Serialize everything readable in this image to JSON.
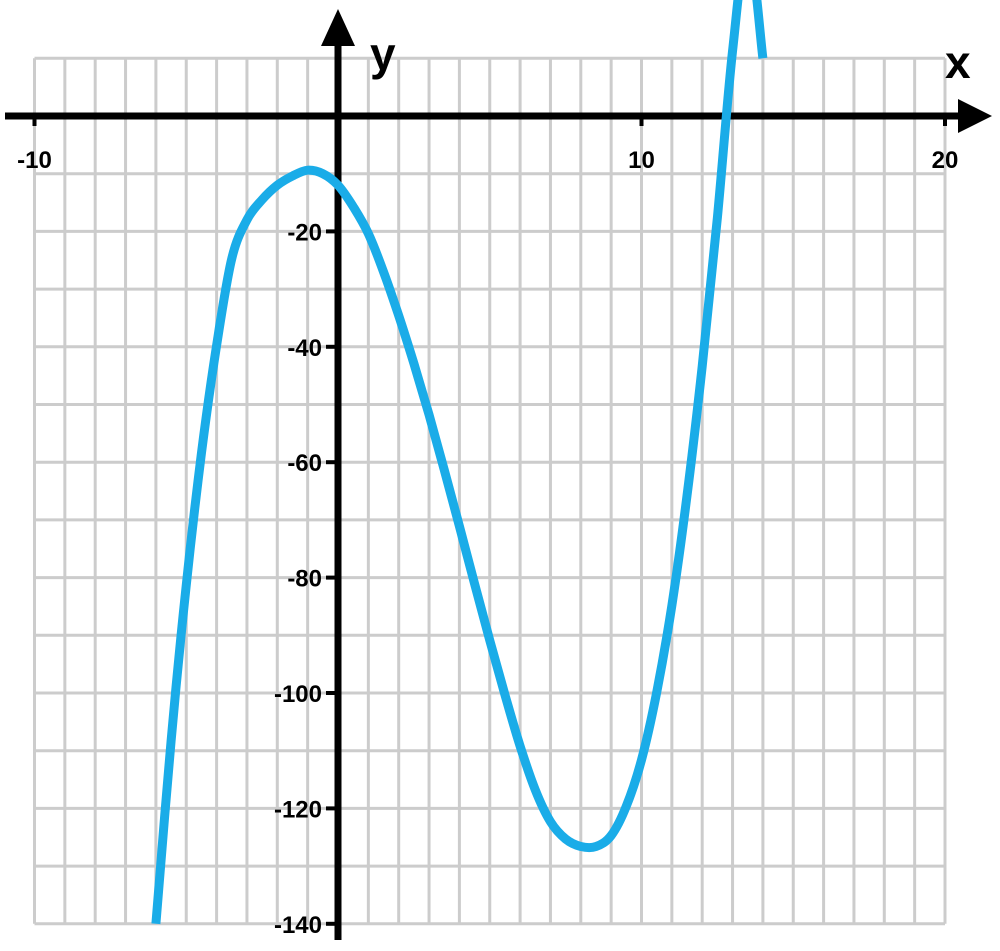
{
  "chart_data": {
    "type": "line",
    "title": "",
    "xlabel": "x",
    "ylabel": "y",
    "xlim": [
      -10,
      20
    ],
    "ylim": [
      -140,
      10
    ],
    "grid": true,
    "x_grid_step": 1,
    "y_grid_step": 10,
    "x_ticks": [
      {
        "value": -10,
        "label": "-10"
      },
      {
        "value": 10,
        "label": "10"
      },
      {
        "value": 20,
        "label": "20"
      }
    ],
    "y_ticks": [
      {
        "value": -20,
        "label": "-20"
      },
      {
        "value": -40,
        "label": "-40"
      },
      {
        "value": -60,
        "label": "-60"
      },
      {
        "value": -80,
        "label": "-80"
      },
      {
        "value": -100,
        "label": "-100"
      },
      {
        "value": -120,
        "label": "-120"
      },
      {
        "value": -140,
        "label": "-140"
      }
    ],
    "series": [
      {
        "color": "#1aace8",
        "x": [
          -6,
          -5.5,
          -5,
          -4.5,
          -4,
          -3.5,
          -3,
          -2.5,
          -2,
          -1.5,
          -1,
          -0.5,
          0,
          0.5,
          1,
          1.5,
          2,
          2.5,
          3,
          3.5,
          4,
          4.5,
          5,
          5.5,
          6,
          6.5,
          7,
          7.5,
          8,
          8.5,
          9,
          9.5,
          10,
          10.5,
          11,
          11.5,
          12,
          12.5,
          13,
          13.5,
          14
        ],
        "y": [
          -140,
          -108.3,
          -81.25,
          -58.5,
          -39.75,
          -24.7,
          -18,
          -14.5,
          -12,
          -10.4,
          -9.4,
          -10,
          -12,
          -15.7,
          -20.4,
          -27,
          -34.6,
          -42.9,
          -51.8,
          -61.3,
          -71.1,
          -81.1,
          -90.9,
          -100.3,
          -109.2,
          -116.8,
          -122.3,
          -125.3,
          -126.6,
          -126.6,
          -124.7,
          -119.6,
          -111.6,
          -99.9,
          -84.8,
          -65.8,
          -43.4,
          -17.6,
          11.2,
          30,
          10
        ]
      }
    ]
  }
}
